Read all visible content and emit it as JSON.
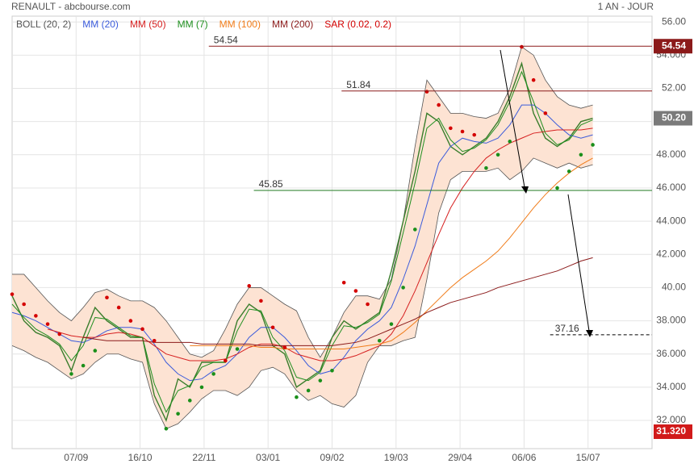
{
  "chart_data": {
    "type": "stock",
    "title": "RENAULT - abcbourse.com",
    "subtitle": "1 AN - JOUR",
    "x": [
      0,
      5,
      10,
      15,
      20,
      25,
      30,
      35,
      40,
      45,
      50,
      55,
      60,
      65,
      70,
      75,
      80,
      85,
      90,
      95,
      100,
      105,
      110,
      115,
      120,
      125,
      130,
      135,
      140,
      145,
      150,
      155,
      160,
      165,
      170,
      175,
      180,
      185,
      190,
      195,
      200,
      205,
      210,
      215,
      220,
      225,
      230,
      235,
      240,
      245
    ],
    "xlim": [
      0,
      270
    ],
    "xticks": [
      {
        "value": 27,
        "label": "07/09"
      },
      {
        "value": 54,
        "label": "16/10"
      },
      {
        "value": 81,
        "label": "22/11"
      },
      {
        "value": 108,
        "label": "03/01"
      },
      {
        "value": 135,
        "label": "09/02"
      },
      {
        "value": 162,
        "label": "19/03"
      },
      {
        "value": 189,
        "label": "29/04"
      },
      {
        "value": 216,
        "label": "06/06"
      },
      {
        "value": 243,
        "label": "15/07"
      }
    ],
    "ylim": [
      30.3,
      56.35
    ],
    "yticks": [
      {
        "value": 32,
        "label": "32.000"
      },
      {
        "value": 34,
        "label": "34.000"
      },
      {
        "value": 36,
        "label": "36.000"
      },
      {
        "value": 38,
        "label": "38.000"
      },
      {
        "value": 40,
        "label": "40.00"
      },
      {
        "value": 42,
        "label": "42.000"
      },
      {
        "value": 44,
        "label": "44.000"
      },
      {
        "value": 46,
        "label": "46.000"
      },
      {
        "value": 48,
        "label": "48.000"
      },
      {
        "value": 50,
        "label": "50.000"
      },
      {
        "value": 52,
        "label": "52.00"
      },
      {
        "value": 54,
        "label": "54.000"
      },
      {
        "value": 56,
        "label": "56.00"
      }
    ],
    "grid": true,
    "price": {
      "color": "#3a7d2c",
      "values": [
        39.5,
        38.0,
        37.3,
        37.0,
        36.5,
        35.0,
        37.0,
        38.8,
        38.0,
        37.5,
        37.0,
        37.0,
        33.5,
        32.0,
        34.5,
        34.0,
        35.5,
        35.5,
        35.5,
        38.0,
        39.0,
        38.5,
        36.5,
        36.0,
        34.0,
        34.5,
        35.0,
        37.0,
        38.0,
        37.5,
        38.0,
        38.5,
        41.0,
        44.0,
        47.0,
        50.5,
        50.0,
        48.5,
        48.0,
        48.5,
        49.0,
        50.0,
        51.5,
        53.5,
        50.5,
        49.0,
        48.5,
        49.0,
        50.0,
        50.2
      ]
    },
    "bollinger": {
      "name": "BOLL (20, 2)",
      "color": "#555555",
      "fill": "#fde3d3",
      "upper": [
        40.8,
        40.8,
        40.0,
        39.2,
        38.5,
        38.0,
        38.8,
        39.7,
        39.9,
        39.5,
        39.2,
        39.2,
        38.8,
        38.0,
        37.0,
        36.0,
        35.8,
        36.2,
        37.5,
        39.0,
        40.0,
        40.0,
        39.5,
        39.0,
        38.6,
        37.0,
        35.8,
        37.0,
        38.5,
        39.5,
        39.5,
        39.3,
        40.5,
        44.0,
        48.5,
        52.5,
        51.5,
        50.5,
        50.5,
        50.3,
        50.2,
        50.5,
        52.0,
        54.5,
        54.0,
        52.5,
        51.5,
        51.0,
        50.8,
        51.0
      ],
      "lower": [
        36.5,
        36.2,
        35.8,
        35.5,
        35.0,
        34.5,
        34.8,
        35.5,
        36.0,
        36.0,
        35.7,
        35.5,
        33.0,
        31.5,
        31.8,
        32.5,
        33.3,
        33.8,
        33.8,
        33.5,
        34.0,
        35.0,
        35.2,
        34.8,
        33.8,
        33.2,
        33.5,
        33.0,
        32.8,
        33.5,
        35.5,
        36.5,
        36.5,
        36.8,
        37.0,
        40.5,
        44.5,
        46.5,
        47.0,
        47.0,
        47.0,
        47.2,
        46.5,
        47.0,
        47.8,
        47.5,
        47.2,
        47.5,
        47.2,
        47.4
      ]
    },
    "series": [
      {
        "name": "MM (20)",
        "color": "#3b5bdb",
        "values": [
          38.5,
          38.3,
          38.0,
          37.6,
          37.2,
          36.8,
          36.7,
          37.0,
          37.4,
          37.6,
          37.6,
          37.5,
          36.6,
          35.5,
          34.8,
          34.4,
          34.5,
          35.0,
          35.3,
          36.0,
          37.0,
          37.6,
          37.6,
          37.0,
          36.2,
          35.3,
          34.8,
          35.0,
          35.8,
          36.8,
          37.5,
          38.0,
          38.8,
          40.5,
          42.5,
          45.0,
          47.5,
          48.5,
          49.0,
          48.8,
          48.7,
          49.0,
          49.8,
          51.0,
          51.0,
          50.5,
          49.8,
          49.2,
          49.0,
          49.2
        ]
      },
      {
        "name": "MM (50)",
        "color": "#d62020",
        "values": [
          null,
          null,
          null,
          37.5,
          37.3,
          37.1,
          37.0,
          37.0,
          37.2,
          37.3,
          37.2,
          37.0,
          36.5,
          36.0,
          35.8,
          35.6,
          35.6,
          35.6,
          35.7,
          36.0,
          36.4,
          36.6,
          36.6,
          36.4,
          36.0,
          35.8,
          35.6,
          35.6,
          35.7,
          35.9,
          36.2,
          36.5,
          37.2,
          38.3,
          39.8,
          41.5,
          43.2,
          44.8,
          46.0,
          47.0,
          47.8,
          48.3,
          48.7,
          49.0,
          49.3,
          49.4,
          49.5,
          49.5,
          49.5,
          49.6
        ]
      },
      {
        "name": "MM (7)",
        "color": "#1f8f1f",
        "values": [
          39.0,
          38.2,
          37.5,
          37.1,
          36.6,
          35.6,
          36.5,
          38.2,
          38.1,
          37.6,
          37.1,
          37.0,
          34.2,
          32.5,
          33.8,
          34.1,
          35.2,
          35.5,
          35.5,
          37.4,
          38.7,
          38.6,
          37.0,
          36.2,
          34.6,
          34.4,
          34.9,
          36.5,
          37.7,
          37.6,
          37.9,
          38.4,
          40.4,
          43.3,
          46.3,
          49.6,
          50.2,
          48.9,
          48.2,
          48.4,
          48.9,
          49.8,
          51.2,
          53.0,
          51.2,
          49.3,
          48.6,
          48.9,
          49.8,
          50.1
        ]
      },
      {
        "name": "MM (100)",
        "color": "#f07c1a",
        "values": [
          null,
          null,
          null,
          null,
          null,
          null,
          null,
          null,
          null,
          null,
          null,
          null,
          null,
          null,
          null,
          36.5,
          36.5,
          36.5,
          36.5,
          36.5,
          36.5,
          36.4,
          36.4,
          36.3,
          36.3,
          36.3,
          36.3,
          36.3,
          36.3,
          36.4,
          36.5,
          36.6,
          36.8,
          37.3,
          37.9,
          38.6,
          39.3,
          40.0,
          40.6,
          41.1,
          41.6,
          42.2,
          43.0,
          43.9,
          44.8,
          45.6,
          46.3,
          46.9,
          47.4,
          47.8
        ]
      },
      {
        "name": "MM (200)",
        "color": "#8b1a1a",
        "values": [
          null,
          null,
          null,
          null,
          null,
          null,
          37.0,
          36.9,
          36.8,
          36.8,
          36.8,
          36.8,
          36.7,
          36.7,
          36.7,
          36.7,
          36.6,
          36.6,
          36.6,
          36.6,
          36.6,
          36.5,
          36.5,
          36.5,
          36.5,
          36.5,
          36.5,
          36.5,
          36.6,
          36.7,
          36.9,
          37.2,
          37.5,
          37.8,
          38.1,
          38.5,
          38.8,
          39.1,
          39.3,
          39.5,
          39.7,
          40.0,
          40.2,
          40.4,
          40.6,
          40.8,
          41.0,
          41.3,
          41.6,
          41.8
        ]
      },
      {
        "name": "SAR (0.02, 0.2)",
        "color": "#d40000",
        "color_below": "#1a8f1a",
        "style": "dots",
        "values": [
          39.6,
          39.0,
          38.3,
          37.8,
          37.2,
          34.8,
          35.3,
          36.2,
          39.4,
          38.8,
          38.0,
          37.5,
          36.8,
          31.5,
          32.4,
          33.2,
          34.0,
          34.8,
          35.6,
          36.3,
          40.1,
          39.2,
          37.6,
          36.4,
          33.4,
          33.8,
          34.4,
          35.0,
          40.3,
          39.8,
          39.0,
          36.8,
          37.8,
          40.0,
          43.5,
          51.8,
          51.0,
          49.6,
          49.4,
          49.2,
          47.2,
          48.0,
          48.8,
          54.5,
          52.5,
          50.5,
          46.0,
          47.0,
          48.0,
          48.6
        ]
      }
    ],
    "levels": [
      {
        "value": 54.54,
        "label": "54.54",
        "color": "#8b1a1a",
        "x_start": 83
      },
      {
        "value": 51.84,
        "label": "51.84",
        "color": "#8b1a1a",
        "x_start": 139
      },
      {
        "value": 45.85,
        "label": "45.85",
        "color": "#1f7a1f",
        "x_start": 102
      },
      {
        "value": 37.16,
        "label": "37.16",
        "color": "#000000",
        "x_start": 227,
        "dashed": true
      }
    ],
    "last": {
      "value": 50.2,
      "label": "50.20",
      "color": "#7a7a7a"
    },
    "low": {
      "value": 31.32,
      "label": "31.320",
      "color": "#d11a1a"
    }
  }
}
